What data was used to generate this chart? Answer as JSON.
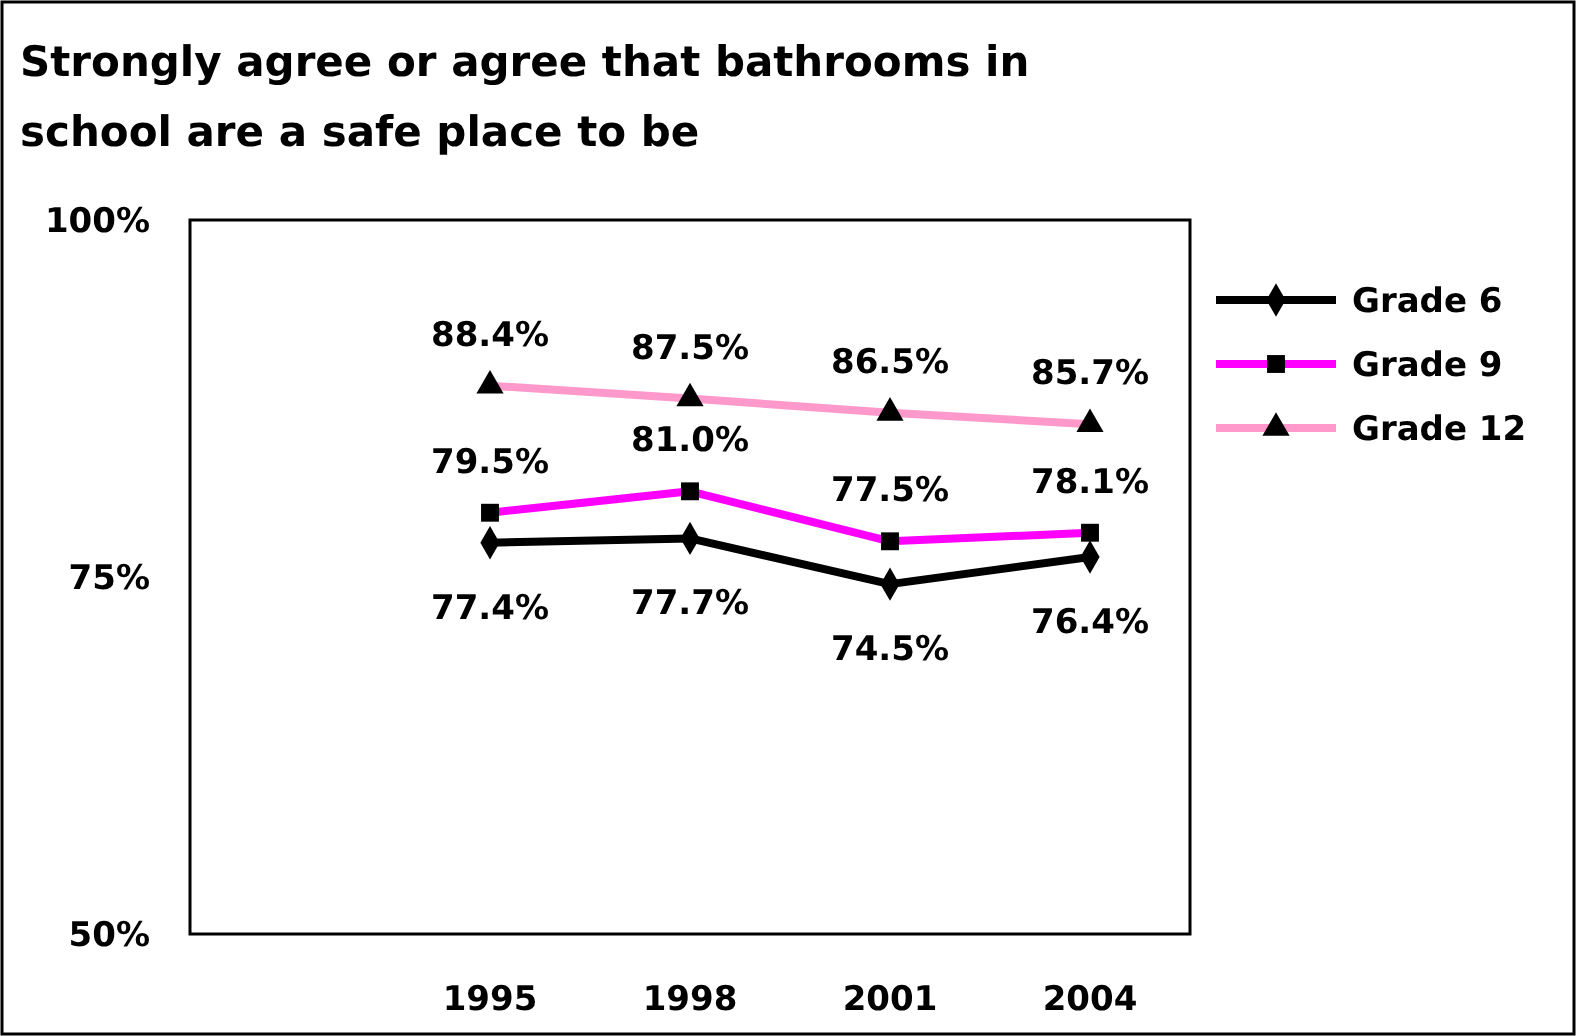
{
  "chart_data": {
    "type": "line",
    "title": "Strongly agree or agree that bathrooms in school are a safe place to be",
    "categories": [
      null,
      "1995",
      "1998",
      "2001",
      "2004"
    ],
    "series": [
      {
        "name": "Grade 6",
        "color": "#000000",
        "marker": "diamond",
        "values": [
          null,
          77.4,
          77.7,
          74.5,
          76.4
        ],
        "value_labels": [
          null,
          "77.4%",
          "77.7%",
          "74.5%",
          "76.4%"
        ]
      },
      {
        "name": "Grade 9",
        "color": "#ff00ff",
        "marker": "square",
        "values": [
          null,
          79.5,
          81.0,
          77.5,
          78.1
        ],
        "value_labels": [
          null,
          "79.5%",
          "81.0%",
          "77.5%",
          "78.1%"
        ]
      },
      {
        "name": "Grade 12",
        "color": "#ff99cc",
        "marker": "triangle",
        "values": [
          null,
          88.4,
          87.5,
          86.5,
          85.7
        ],
        "value_labels": [
          null,
          "88.4%",
          "87.5%",
          "86.5%",
          "85.7%"
        ]
      }
    ],
    "ylim": [
      50,
      100
    ],
    "yticks": [
      {
        "value": 50,
        "label": "50%"
      },
      {
        "value": 75,
        "label": "75%"
      },
      {
        "value": 100,
        "label": "100%"
      }
    ],
    "grid": false,
    "legend": "right"
  }
}
